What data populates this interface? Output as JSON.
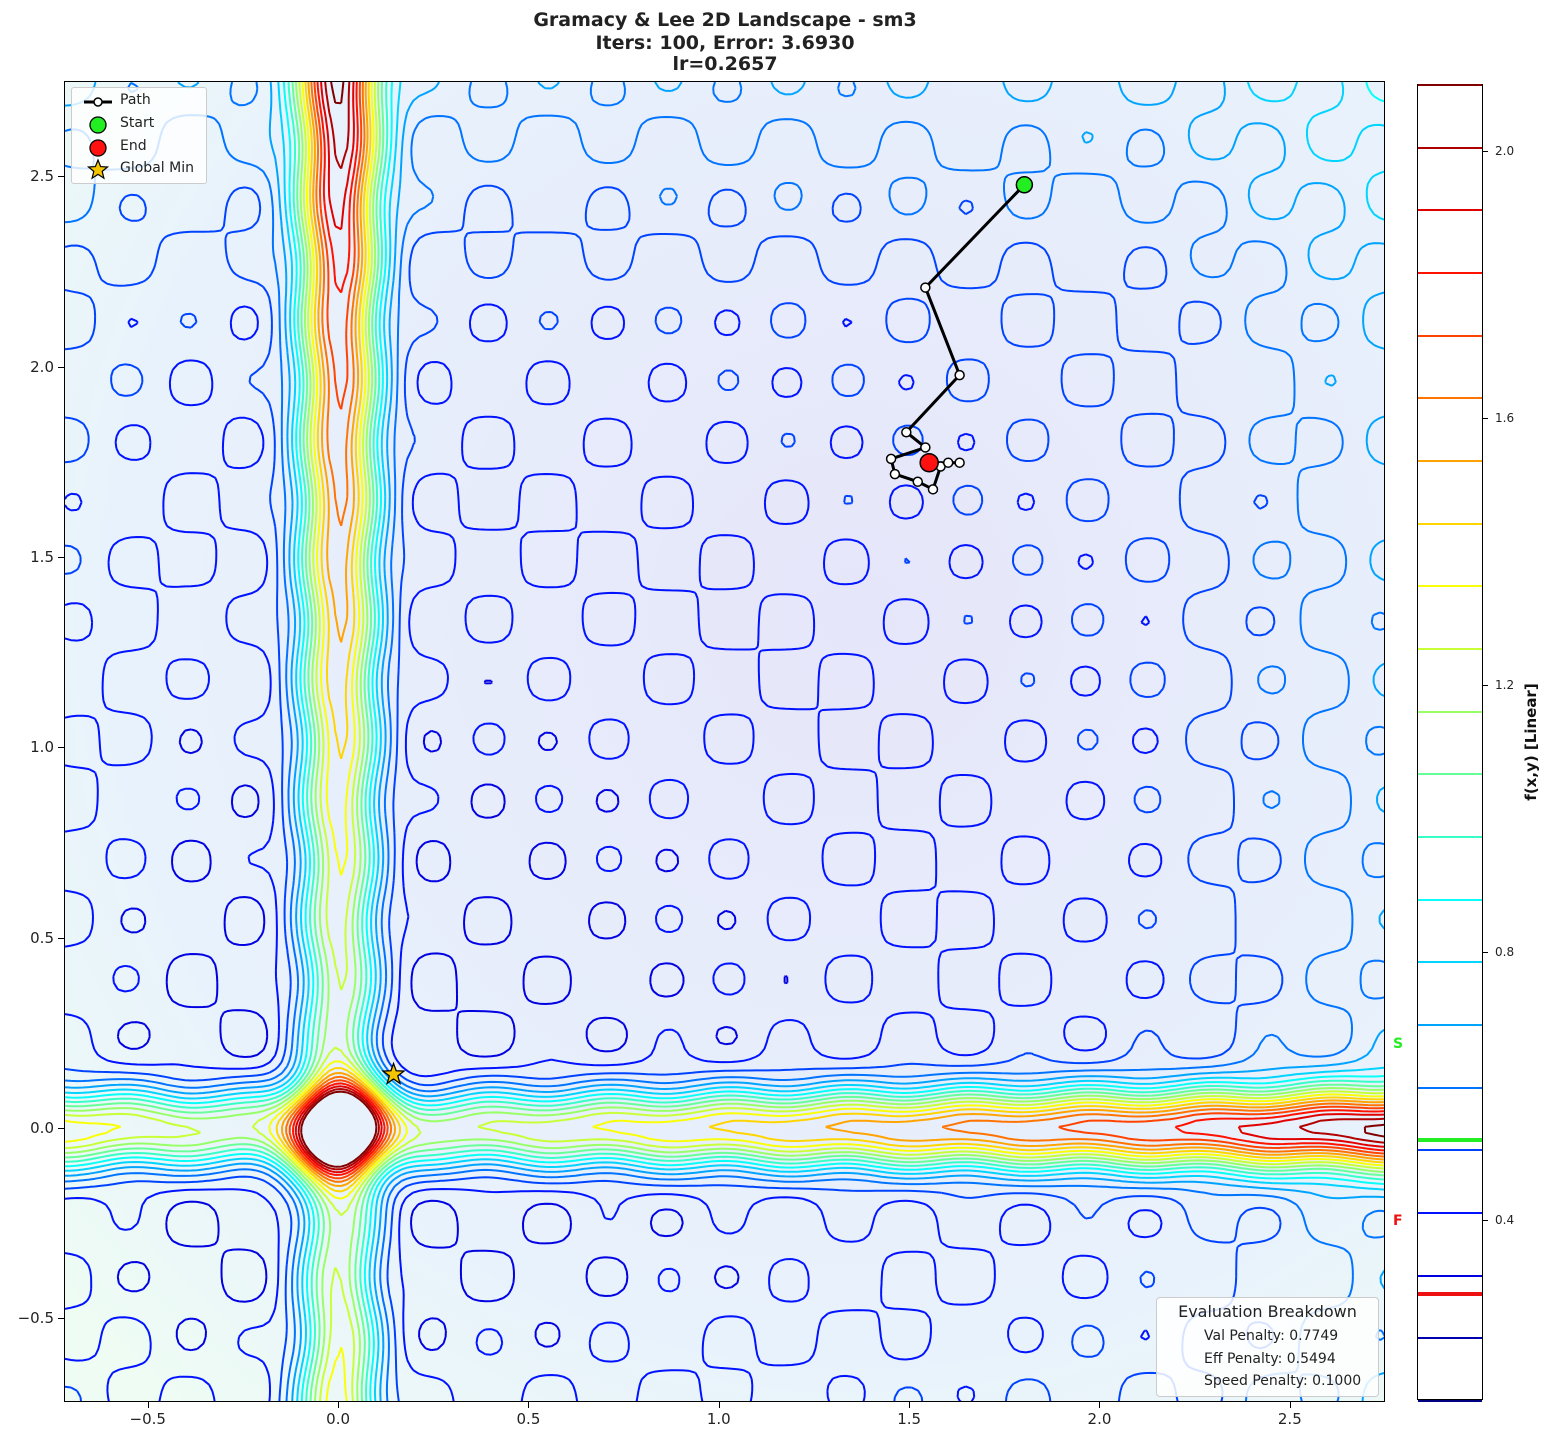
{
  "title": {
    "line1": "Gramacy & Lee 2D Landscape - sm3",
    "line2": "Iters: 100, Error: 3.6930",
    "line3": "lr=0.2657"
  },
  "legend": {
    "items": [
      {
        "label": "Path",
        "symbol": "line-with-white-circle"
      },
      {
        "label": "Start",
        "symbol": "green-circle",
        "color": "#22ee22"
      },
      {
        "label": "End",
        "symbol": "red-circle",
        "color": "#ff1111"
      },
      {
        "label": "Global Min",
        "symbol": "gold-star",
        "color": "#f5c400"
      }
    ]
  },
  "evaluation": {
    "heading": "Evaluation Breakdown",
    "val_penalty": "Val Penalty: 0.7749",
    "eff_penalty": "Eff Penalty: 0.5494",
    "speed_penalty": "Speed Penalty: 0.1000"
  },
  "colorbar": {
    "label": "f(x,y) [Linear]",
    "ticks": [
      "2.0",
      "1.6",
      "1.2",
      "0.8",
      "0.4"
    ],
    "start_marker": "S",
    "finish_marker": "F",
    "start_color": "#22ee22",
    "finish_color": "#ee1111"
  },
  "chart_data": {
    "type": "contour",
    "title": "Gramacy & Lee 2D Landscape - sm3 | Iters: 100, Error: 3.6930 | lr=0.2657",
    "xlabel": "",
    "ylabel": "",
    "xlim": [
      -0.72,
      2.75
    ],
    "ylim": [
      -0.72,
      2.75
    ],
    "x_ticks": [
      "-0.5",
      "0.0",
      "0.5",
      "1.0",
      "1.5",
      "2.0",
      "2.5"
    ],
    "y_ticks": [
      "-0.5",
      "0.0",
      "0.5",
      "1.0",
      "1.5",
      "2.0",
      "2.5"
    ],
    "colormap": "jet",
    "colorbar_range": [
      0.13,
      2.1
    ],
    "contour_levels": 22,
    "start_value": 0.52,
    "final_value": 0.29,
    "global_min": {
      "x": 0.143,
      "y": 0.143
    },
    "start": {
      "x": 1.8,
      "y": 2.48
    },
    "end": {
      "x": 1.55,
      "y": 1.75
    },
    "path": [
      {
        "x": 1.8,
        "y": 2.48
      },
      {
        "x": 1.54,
        "y": 2.21
      },
      {
        "x": 1.63,
        "y": 1.98
      },
      {
        "x": 1.49,
        "y": 1.83
      },
      {
        "x": 1.54,
        "y": 1.79
      },
      {
        "x": 1.45,
        "y": 1.76
      },
      {
        "x": 1.46,
        "y": 1.72
      },
      {
        "x": 1.52,
        "y": 1.7
      },
      {
        "x": 1.56,
        "y": 1.68
      },
      {
        "x": 1.58,
        "y": 1.74
      },
      {
        "x": 1.6,
        "y": 1.75
      },
      {
        "x": 1.63,
        "y": 1.75
      },
      {
        "x": 1.55,
        "y": 1.75
      }
    ],
    "legend_position": "upper left",
    "grid": false
  }
}
